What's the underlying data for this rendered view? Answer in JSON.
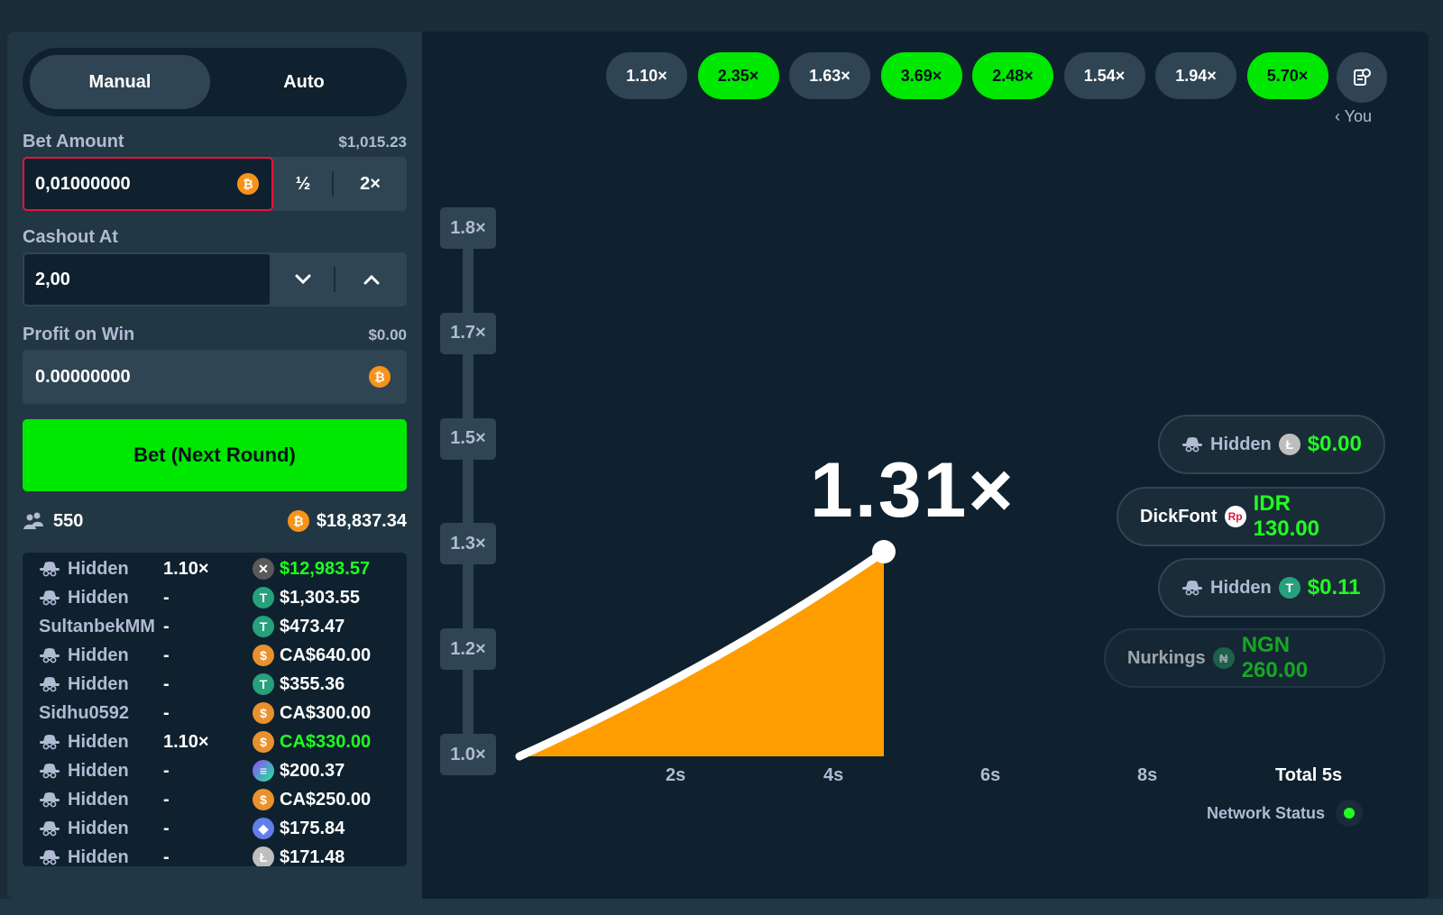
{
  "mode_toggle": {
    "manual_label": "Manual",
    "auto_label": "Auto",
    "active": "Manual"
  },
  "bet_amount": {
    "label": "Bet Amount",
    "balance": "$1,015.23",
    "value": "0,01000000",
    "currency_icon": "bitcoin-icon",
    "half_label": "½",
    "double_label": "2×"
  },
  "cashout_at": {
    "label": "Cashout At",
    "value": "2,00"
  },
  "profit_on_win": {
    "label": "Profit on Win",
    "amount": "$0.00",
    "value": "0.00000000"
  },
  "bet_button": {
    "label": "Bet (Next Round)"
  },
  "stats": {
    "players": "550",
    "total_amount": "$18,837.34"
  },
  "bets": [
    {
      "user": "Hidden",
      "hidden": true,
      "multiplier": "1.10×",
      "coin": "xrp",
      "amount": "$12,983.57",
      "won": true
    },
    {
      "user": "Hidden",
      "hidden": true,
      "multiplier": "-",
      "coin": "usdt",
      "amount": "$1,303.55",
      "won": false
    },
    {
      "user": "SultanbekMM",
      "hidden": false,
      "multiplier": "-",
      "coin": "usdt",
      "amount": "$473.47",
      "won": false
    },
    {
      "user": "Hidden",
      "hidden": true,
      "multiplier": "-",
      "coin": "cad",
      "amount": "CA$640.00",
      "won": false
    },
    {
      "user": "Hidden",
      "hidden": true,
      "multiplier": "-",
      "coin": "usdt",
      "amount": "$355.36",
      "won": false
    },
    {
      "user": "Sidhu0592",
      "hidden": false,
      "multiplier": "-",
      "coin": "cad",
      "amount": "CA$300.00",
      "won": false
    },
    {
      "user": "Hidden",
      "hidden": true,
      "multiplier": "1.10×",
      "coin": "cad",
      "amount": "CA$330.00",
      "won": true
    },
    {
      "user": "Hidden",
      "hidden": true,
      "multiplier": "-",
      "coin": "sol",
      "amount": "$200.37",
      "won": false
    },
    {
      "user": "Hidden",
      "hidden": true,
      "multiplier": "-",
      "coin": "cad",
      "amount": "CA$250.00",
      "won": false
    },
    {
      "user": "Hidden",
      "hidden": true,
      "multiplier": "-",
      "coin": "eth",
      "amount": "$175.84",
      "won": false
    },
    {
      "user": "Hidden",
      "hidden": true,
      "multiplier": "-",
      "coin": "ltc",
      "amount": "$171.48",
      "won": false
    }
  ],
  "history": [
    {
      "label": "1.10×",
      "win": false
    },
    {
      "label": "2.35×",
      "win": true
    },
    {
      "label": "1.63×",
      "win": false
    },
    {
      "label": "3.69×",
      "win": true
    },
    {
      "label": "2.48×",
      "win": true
    },
    {
      "label": "1.54×",
      "win": false
    },
    {
      "label": "1.94×",
      "win": false
    },
    {
      "label": "5.70×",
      "win": true
    }
  ],
  "history_you_label": "‹ You",
  "graph": {
    "y_ticks": [
      "1.8×",
      "1.7×",
      "1.5×",
      "1.3×",
      "1.2×",
      "1.0×"
    ],
    "x_ticks": [
      "2s",
      "4s",
      "6s",
      "8s"
    ],
    "x_total": "Total 5s",
    "current_multiplier": "1.31×",
    "curve_color": "#ff9d00"
  },
  "cashouts": [
    {
      "name": "Hidden",
      "hidden": true,
      "coin": "ltc",
      "amount": "$0.00",
      "faded": false
    },
    {
      "name": "DickFont",
      "hidden": false,
      "coin": "rp",
      "amount": "IDR 130.00",
      "faded": false
    },
    {
      "name": "Hidden",
      "hidden": true,
      "coin": "usdt",
      "amount": "$0.11",
      "faded": false
    },
    {
      "name": "Nurkings",
      "hidden": false,
      "coin": "ngn",
      "amount": "NGN 260.00",
      "faded": true
    }
  ],
  "network_status": {
    "label": "Network Status",
    "status": "online"
  },
  "colors": {
    "accent_green": "#00e701",
    "win_text": "#1fff20",
    "panel": "#213743",
    "background": "#0f212e",
    "alert_border": "#e9113c"
  }
}
